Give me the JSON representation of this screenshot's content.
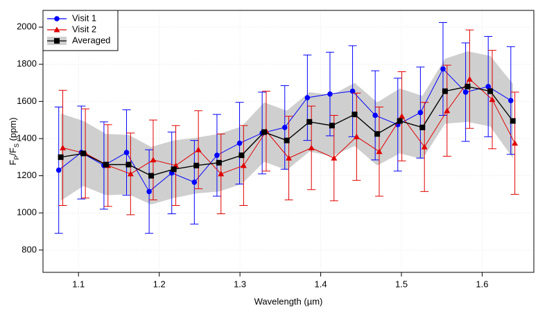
{
  "chart_data": {
    "type": "line",
    "xlabel": "Wavelength (µm)",
    "ylabel_parts": [
      "F",
      "P",
      "/F",
      "S",
      " (ppm)"
    ],
    "xlim": [
      1.056,
      1.664
    ],
    "ylim": [
      680,
      2090
    ],
    "xticks": [
      1.1,
      1.2,
      1.3,
      1.4,
      1.5,
      1.6
    ],
    "yticks": [
      800,
      1000,
      1200,
      1400,
      1600,
      1800,
      2000
    ],
    "grid": true,
    "legend": "upper left",
    "series": [
      {
        "name": "Visit 1",
        "color": "#0000ff",
        "marker": "circle",
        "style": "errorbar",
        "x": [
          1.0755,
          1.1035,
          1.1315,
          1.1595,
          1.1875,
          1.2155,
          1.2435,
          1.2715,
          1.2995,
          1.3275,
          1.3555,
          1.3835,
          1.4115,
          1.4395,
          1.4675,
          1.4955,
          1.5235,
          1.5515,
          1.5795,
          1.6075,
          1.6355
        ],
        "values": [
          1230,
          1325,
          1255,
          1325,
          1115,
          1215,
          1165,
          1310,
          1375,
          1430,
          1460,
          1620,
          1640,
          1655,
          1525,
          1475,
          1540,
          1775,
          1650,
          1680,
          1605
        ],
        "errors": [
          340,
          250,
          235,
          230,
          225,
          220,
          225,
          220,
          220,
          220,
          225,
          230,
          225,
          245,
          240,
          250,
          245,
          250,
          265,
          270,
          290
        ]
      },
      {
        "name": "Visit 2",
        "color": "#e00000",
        "marker": "triangle",
        "style": "errorbar",
        "x": [
          1.0805,
          1.1085,
          1.1365,
          1.1645,
          1.1925,
          1.2205,
          1.2485,
          1.2765,
          1.3045,
          1.3325,
          1.3605,
          1.3885,
          1.4165,
          1.4445,
          1.4725,
          1.5005,
          1.5285,
          1.5565,
          1.5845,
          1.6125,
          1.6405
        ],
        "values": [
          1350,
          1320,
          1255,
          1210,
          1285,
          1255,
          1340,
          1210,
          1255,
          1440,
          1295,
          1350,
          1295,
          1410,
          1330,
          1520,
          1355,
          1550,
          1720,
          1610,
          1375
        ],
        "errors": [
          310,
          240,
          220,
          220,
          215,
          215,
          210,
          215,
          215,
          215,
          225,
          225,
          230,
          235,
          240,
          240,
          240,
          245,
          265,
          265,
          275
        ]
      },
      {
        "name": "Averaged",
        "color": "#000000",
        "band_color": "#cfcfcf",
        "marker": "square",
        "style": "band",
        "x": [
          1.078,
          1.106,
          1.134,
          1.162,
          1.19,
          1.218,
          1.246,
          1.274,
          1.302,
          1.33,
          1.358,
          1.386,
          1.414,
          1.442,
          1.47,
          1.498,
          1.526,
          1.554,
          1.582,
          1.61,
          1.638
        ],
        "values": [
          1300,
          1320,
          1260,
          1260,
          1200,
          1235,
          1255,
          1270,
          1310,
          1435,
          1390,
          1490,
          1470,
          1530,
          1425,
          1495,
          1460,
          1655,
          1680,
          1655,
          1495
        ],
        "errors": [
          235,
          175,
          165,
          160,
          155,
          155,
          150,
          155,
          155,
          160,
          160,
          160,
          165,
          170,
          170,
          175,
          170,
          175,
          190,
          190,
          200
        ]
      }
    ]
  }
}
